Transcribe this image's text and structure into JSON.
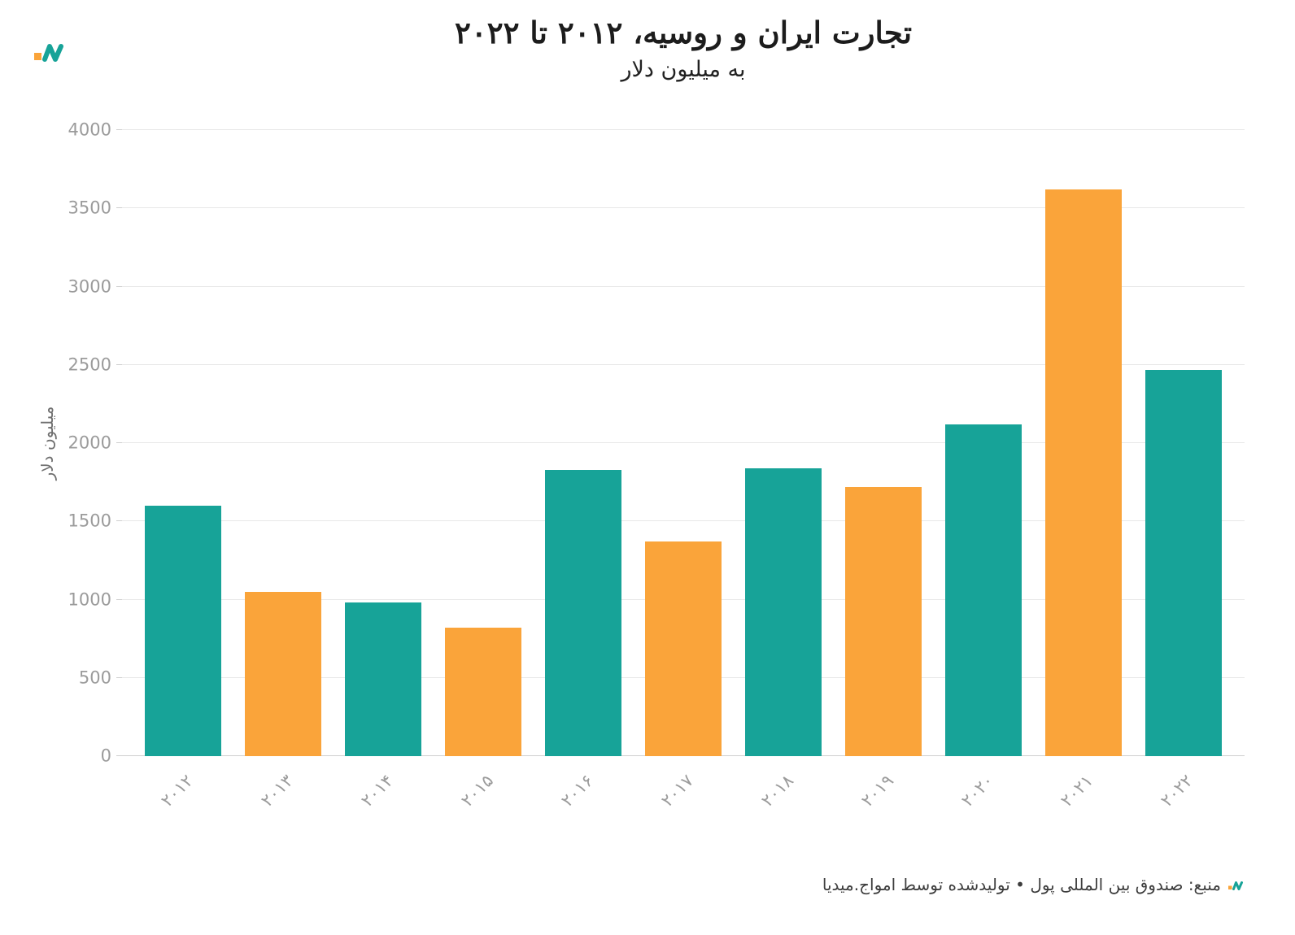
{
  "chart_data": {
    "type": "bar",
    "title": "تجارت ایران و روسیه، ۲۰۱۲ تا ۲۰۲۲",
    "subtitle": "به میلیون دلار",
    "ylabel": "میلیون دلار",
    "categories": [
      "۲۰۱۲",
      "۲۰۱۳",
      "۲۰۱۴",
      "۲۰۱۵",
      "۲۰۱۶",
      "۲۰۱۷",
      "۲۰۱۸",
      "۲۰۱۹",
      "۲۰۲۰",
      "۲۰۲۱",
      "۲۰۲۲"
    ],
    "values": [
      1600,
      1050,
      980,
      820,
      1830,
      1370,
      1840,
      1720,
      2120,
      3620,
      2470
    ],
    "bar_colors": [
      "#17A398",
      "#FAA43A",
      "#17A398",
      "#FAA43A",
      "#17A398",
      "#FAA43A",
      "#17A398",
      "#FAA43A",
      "#17A398",
      "#FAA43A",
      "#17A398"
    ],
    "ylim": [
      0,
      4000
    ],
    "yticks": [
      0,
      500,
      1000,
      1500,
      2000,
      2500,
      3000,
      3500,
      4000
    ],
    "grid": true,
    "legend": "none"
  },
  "footer": {
    "source": "منبع: صندوق بین المللی پول • تولیدشده توسط امواج.میدیا"
  },
  "branding": {
    "logo_icon": "amwaj-media-logo",
    "teal": "#17A398",
    "orange": "#FAA43A"
  },
  "style": {
    "grid_color": "#e7e7e7",
    "axis_text_color": "#9b9b9b"
  }
}
